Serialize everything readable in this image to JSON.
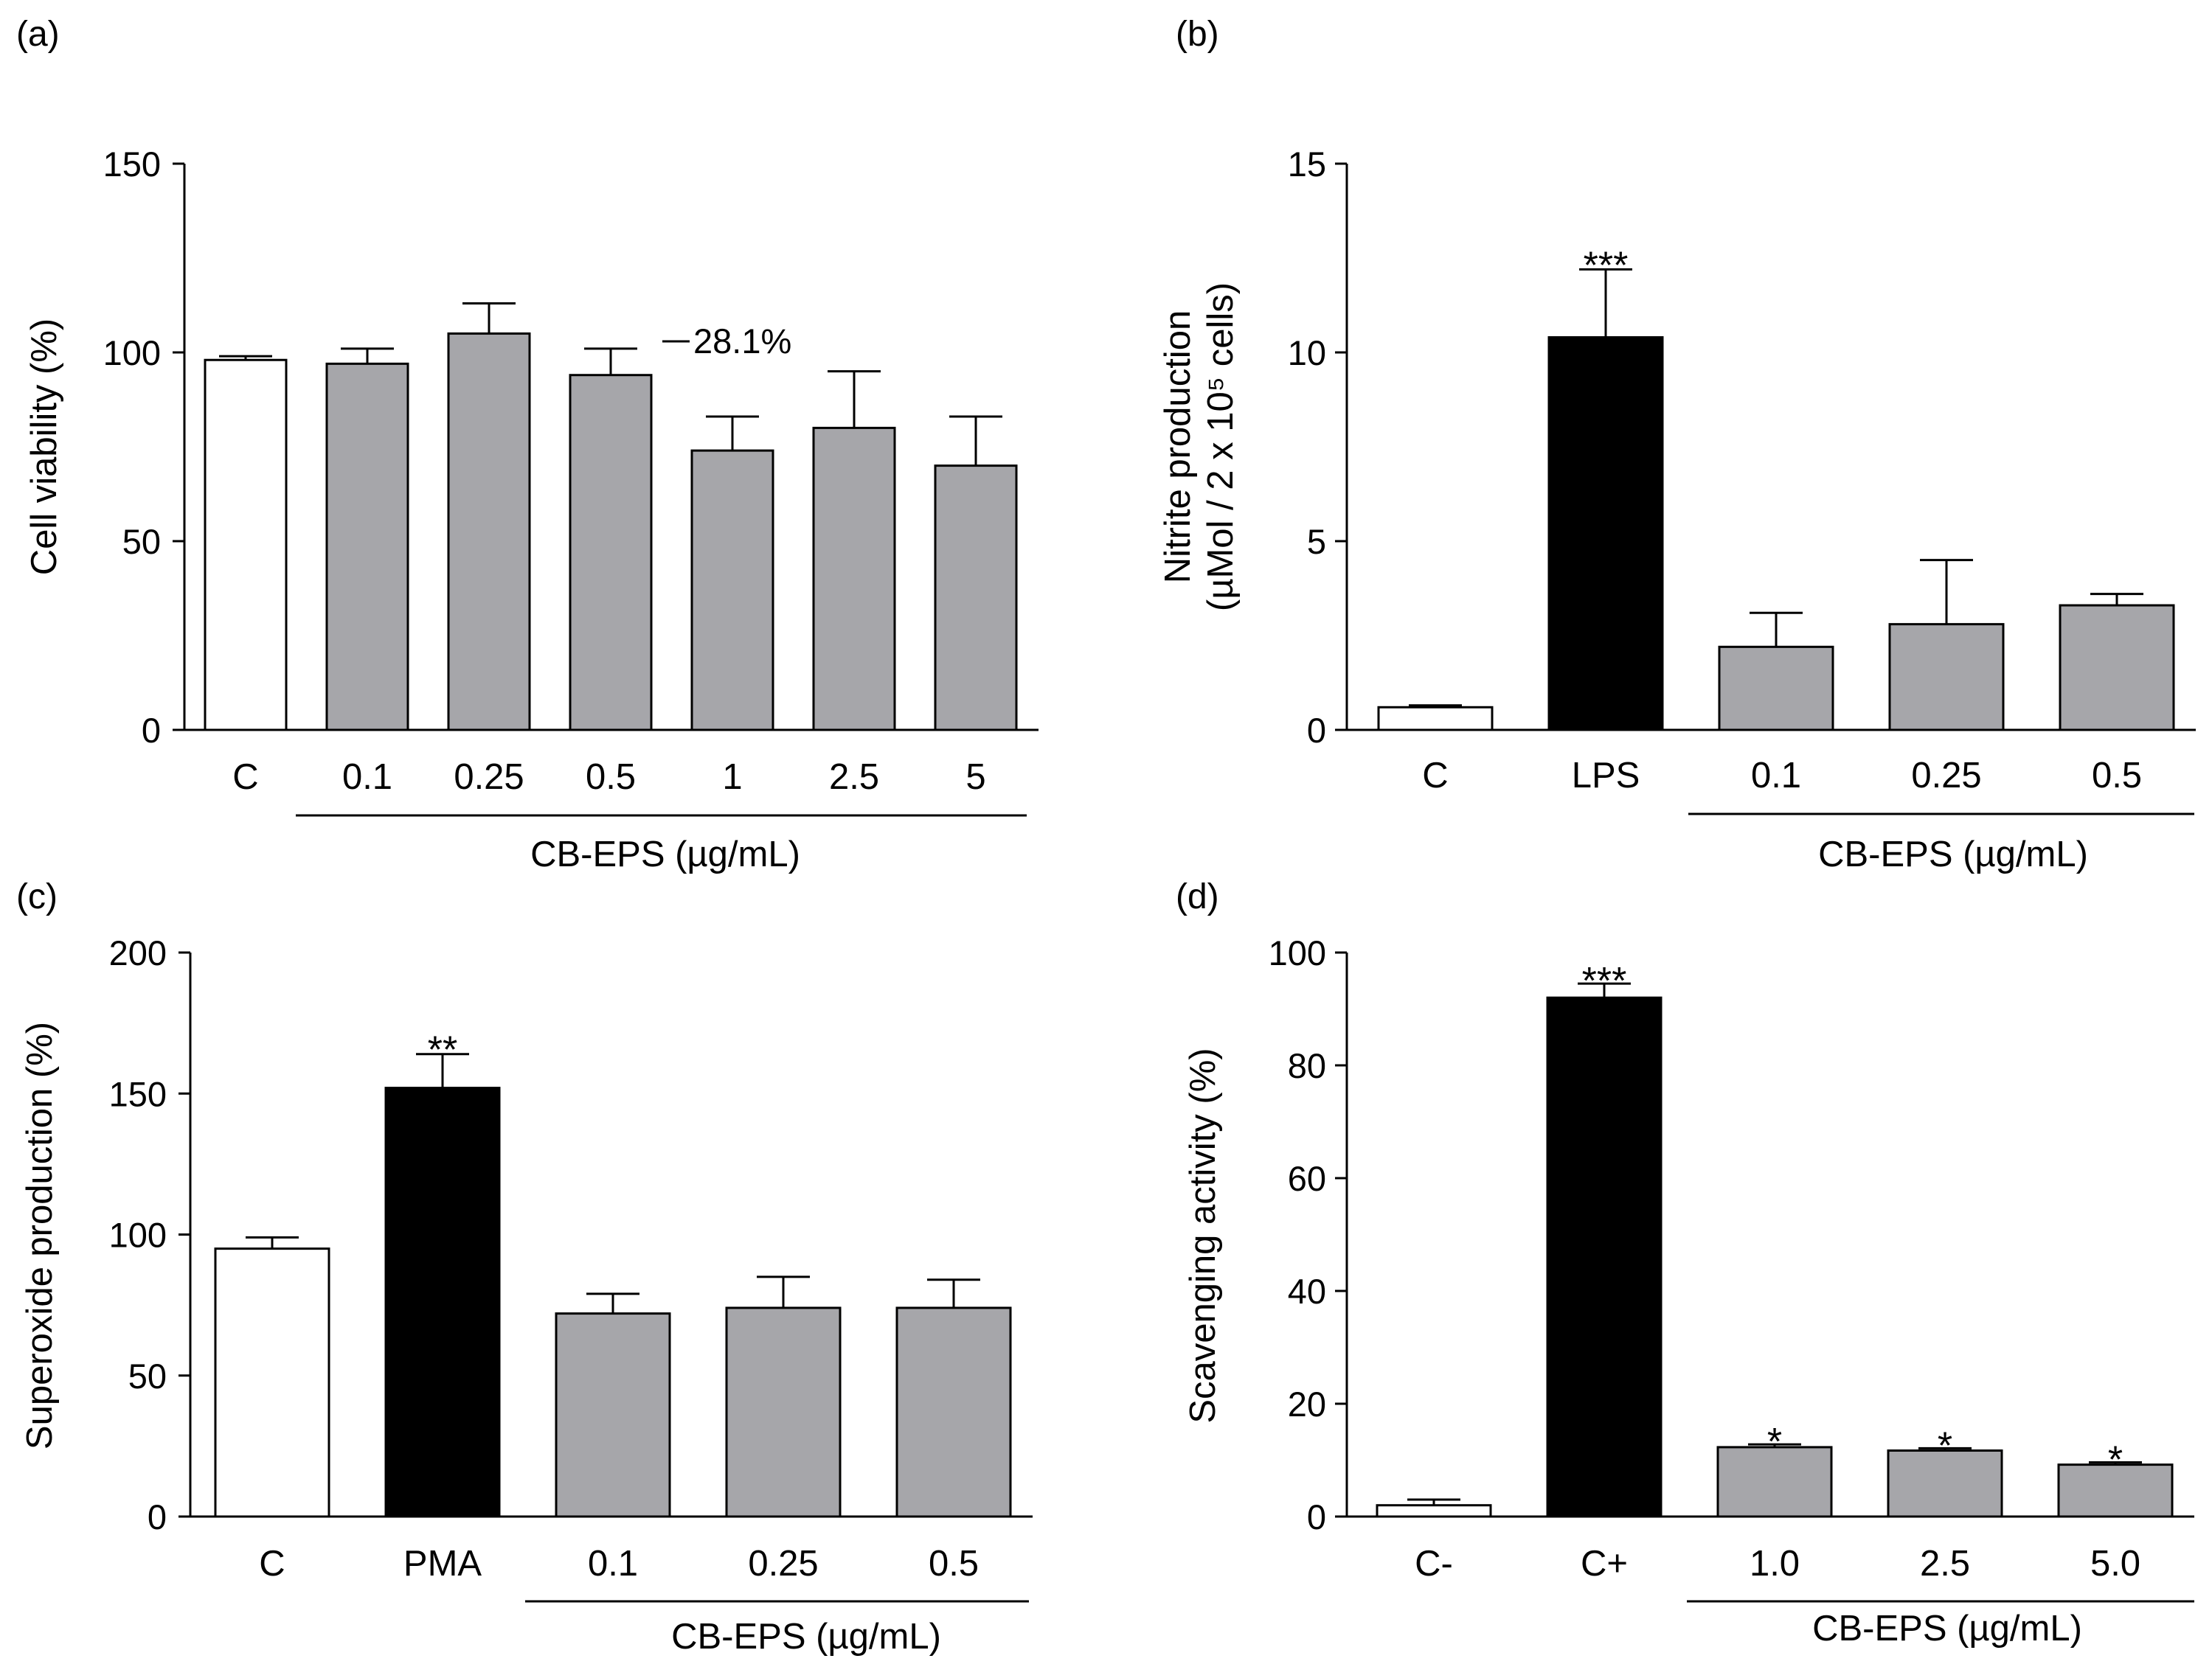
{
  "chart_data": [
    {
      "panel": "(a)",
      "type": "bar",
      "ylabel": "Cell viability (%)",
      "xlabel": "CB-EPS (µg/mL)",
      "ylim": [
        0,
        150
      ],
      "yticks": [
        0,
        50,
        100,
        150
      ],
      "categories": [
        "C",
        "0.1",
        "0.25",
        "0.5",
        "1",
        "2.5",
        "5"
      ],
      "values": [
        98,
        97,
        105,
        94,
        74,
        80,
        70
      ],
      "errors": [
        1,
        4,
        8,
        7,
        9,
        15,
        13
      ],
      "fills": [
        "#ffffff",
        "#a6a6aa",
        "#a6a6aa",
        "#a6a6aa",
        "#a6a6aa",
        "#a6a6aa",
        "#a6a6aa"
      ],
      "significance": [
        "",
        "",
        "",
        "",
        "",
        "",
        ""
      ],
      "group_start": 1,
      "annotation": "28.1%"
    },
    {
      "panel": "(b)",
      "type": "bar",
      "ylabel": "Nitrite production",
      "ylabel2": "(µMol / 2 x 10⁵ cells)",
      "xlabel": "CB-EPS (µg/mL)",
      "ylim": [
        0,
        15
      ],
      "yticks": [
        0,
        5,
        10,
        15
      ],
      "categories": [
        "C",
        "LPS",
        "0.1",
        "0.25",
        "0.5"
      ],
      "values": [
        0.6,
        10.4,
        2.2,
        2.8,
        3.3
      ],
      "errors": [
        0.05,
        1.8,
        0.9,
        1.7,
        0.3
      ],
      "fills": [
        "#ffffff",
        "#000000",
        "#a6a6aa",
        "#a6a6aa",
        "#a6a6aa"
      ],
      "significance": [
        "",
        "***",
        "",
        "",
        ""
      ],
      "group_start": 2
    },
    {
      "panel": "(c)",
      "type": "bar",
      "ylabel": "Superoxide production (%)",
      "xlabel": "CB-EPS (µg/mL)",
      "ylim": [
        0,
        200
      ],
      "yticks": [
        0,
        50,
        100,
        150,
        200
      ],
      "categories": [
        "C",
        "PMA",
        "0.1",
        "0.25",
        "0.5"
      ],
      "values": [
        95,
        152,
        72,
        74,
        74
      ],
      "errors": [
        4,
        12,
        7,
        11,
        10
      ],
      "fills": [
        "#ffffff",
        "#000000",
        "#a6a6aa",
        "#a6a6aa",
        "#a6a6aa"
      ],
      "significance": [
        "",
        "**",
        "",
        "",
        ""
      ],
      "group_start": 2
    },
    {
      "panel": "(d)",
      "type": "bar",
      "ylabel": "Scavenging activity (%)",
      "xlabel": "CB-EPS (µg/mL)",
      "ylim": [
        0,
        100
      ],
      "yticks": [
        0,
        20,
        40,
        60,
        80,
        100
      ],
      "categories": [
        "C-",
        "C+",
        "1.0",
        "2.5",
        "5.0"
      ],
      "values": [
        2,
        92,
        12.3,
        11.7,
        9.2
      ],
      "errors": [
        1,
        2.5,
        0.5,
        0.4,
        0.4
      ],
      "fills": [
        "#ffffff",
        "#000000",
        "#a6a6aa",
        "#a6a6aa",
        "#a6a6aa"
      ],
      "significance": [
        "",
        "***",
        "*",
        "*",
        "*"
      ],
      "group_start": 2
    }
  ]
}
